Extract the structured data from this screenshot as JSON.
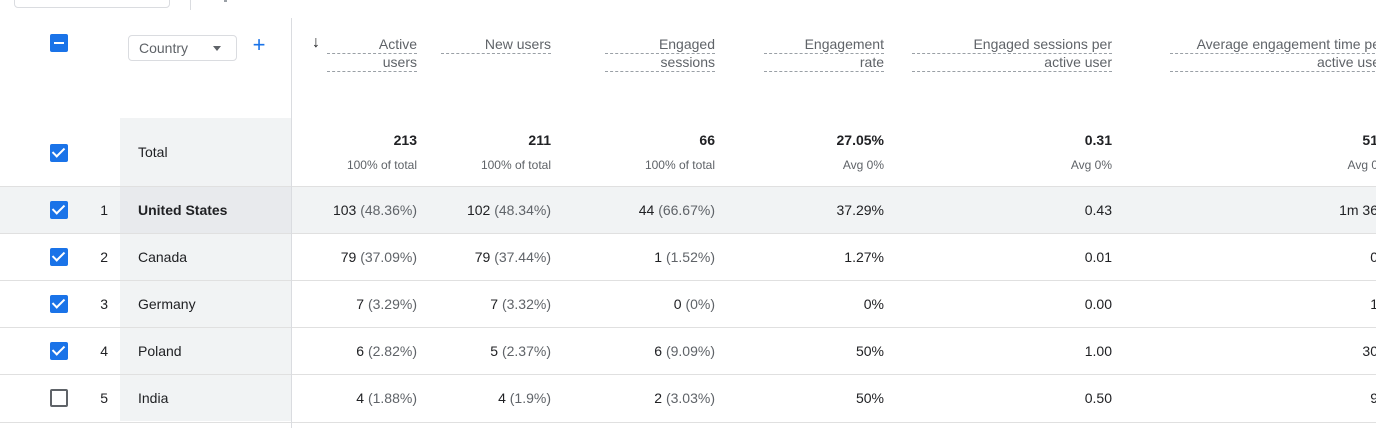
{
  "dimension": {
    "label": "Country",
    "add_label": "+"
  },
  "sort_indicator": "↓",
  "columns": [
    {
      "id": "active_users",
      "line1": "Active",
      "line2": "users"
    },
    {
      "id": "new_users",
      "line1": "New users",
      "line2": ""
    },
    {
      "id": "engaged_sessions",
      "line1": "Engaged",
      "line2": "sessions"
    },
    {
      "id": "engagement_rate",
      "line1": "Engagement",
      "line2": "rate"
    },
    {
      "id": "engaged_sessions_per_user",
      "line1": "Engaged sessions per",
      "line2": "active user"
    },
    {
      "id": "avg_engagement_time",
      "line1": "Average engagement time pe",
      "line2": "active use"
    }
  ],
  "total": {
    "label": "Total",
    "values": [
      "213",
      "211",
      "66",
      "27.05%",
      "0.31",
      "51"
    ],
    "subs": [
      "100% of total",
      "100% of total",
      "100% of total",
      "Avg 0%",
      "Avg 0%",
      "Avg 0"
    ]
  },
  "rows": [
    {
      "num": "1",
      "country": "United States",
      "checked": true,
      "cells": [
        [
          "103",
          "(48.36%)"
        ],
        [
          "102",
          "(48.34%)"
        ],
        [
          "44",
          "(66.67%)"
        ],
        [
          "37.29%",
          ""
        ],
        [
          "0.43",
          ""
        ],
        [
          "1m 36",
          ""
        ]
      ]
    },
    {
      "num": "2",
      "country": "Canada",
      "checked": true,
      "cells": [
        [
          "79",
          "(37.09%)"
        ],
        [
          "79",
          "(37.44%)"
        ],
        [
          "1",
          "(1.52%)"
        ],
        [
          "1.27%",
          ""
        ],
        [
          "0.01",
          ""
        ],
        [
          "0",
          ""
        ]
      ]
    },
    {
      "num": "3",
      "country": "Germany",
      "checked": true,
      "cells": [
        [
          "7",
          "(3.29%)"
        ],
        [
          "7",
          "(3.32%)"
        ],
        [
          "0",
          "(0%)"
        ],
        [
          "0%",
          ""
        ],
        [
          "0.00",
          ""
        ],
        [
          "1",
          ""
        ]
      ]
    },
    {
      "num": "4",
      "country": "Poland",
      "checked": true,
      "cells": [
        [
          "6",
          "(2.82%)"
        ],
        [
          "5",
          "(2.37%)"
        ],
        [
          "6",
          "(9.09%)"
        ],
        [
          "50%",
          ""
        ],
        [
          "1.00",
          ""
        ],
        [
          "30",
          ""
        ]
      ]
    },
    {
      "num": "5",
      "country": "India",
      "checked": false,
      "cells": [
        [
          "4",
          "(1.88%)"
        ],
        [
          "4",
          "(1.9%)"
        ],
        [
          "2",
          "(3.03%)"
        ],
        [
          "50%",
          ""
        ],
        [
          "0.50",
          ""
        ],
        [
          "9",
          ""
        ]
      ]
    }
  ],
  "colors": {
    "accent": "#1a73e8",
    "header_text": "#5f6368",
    "highlight_row": "#f1f3f4"
  }
}
